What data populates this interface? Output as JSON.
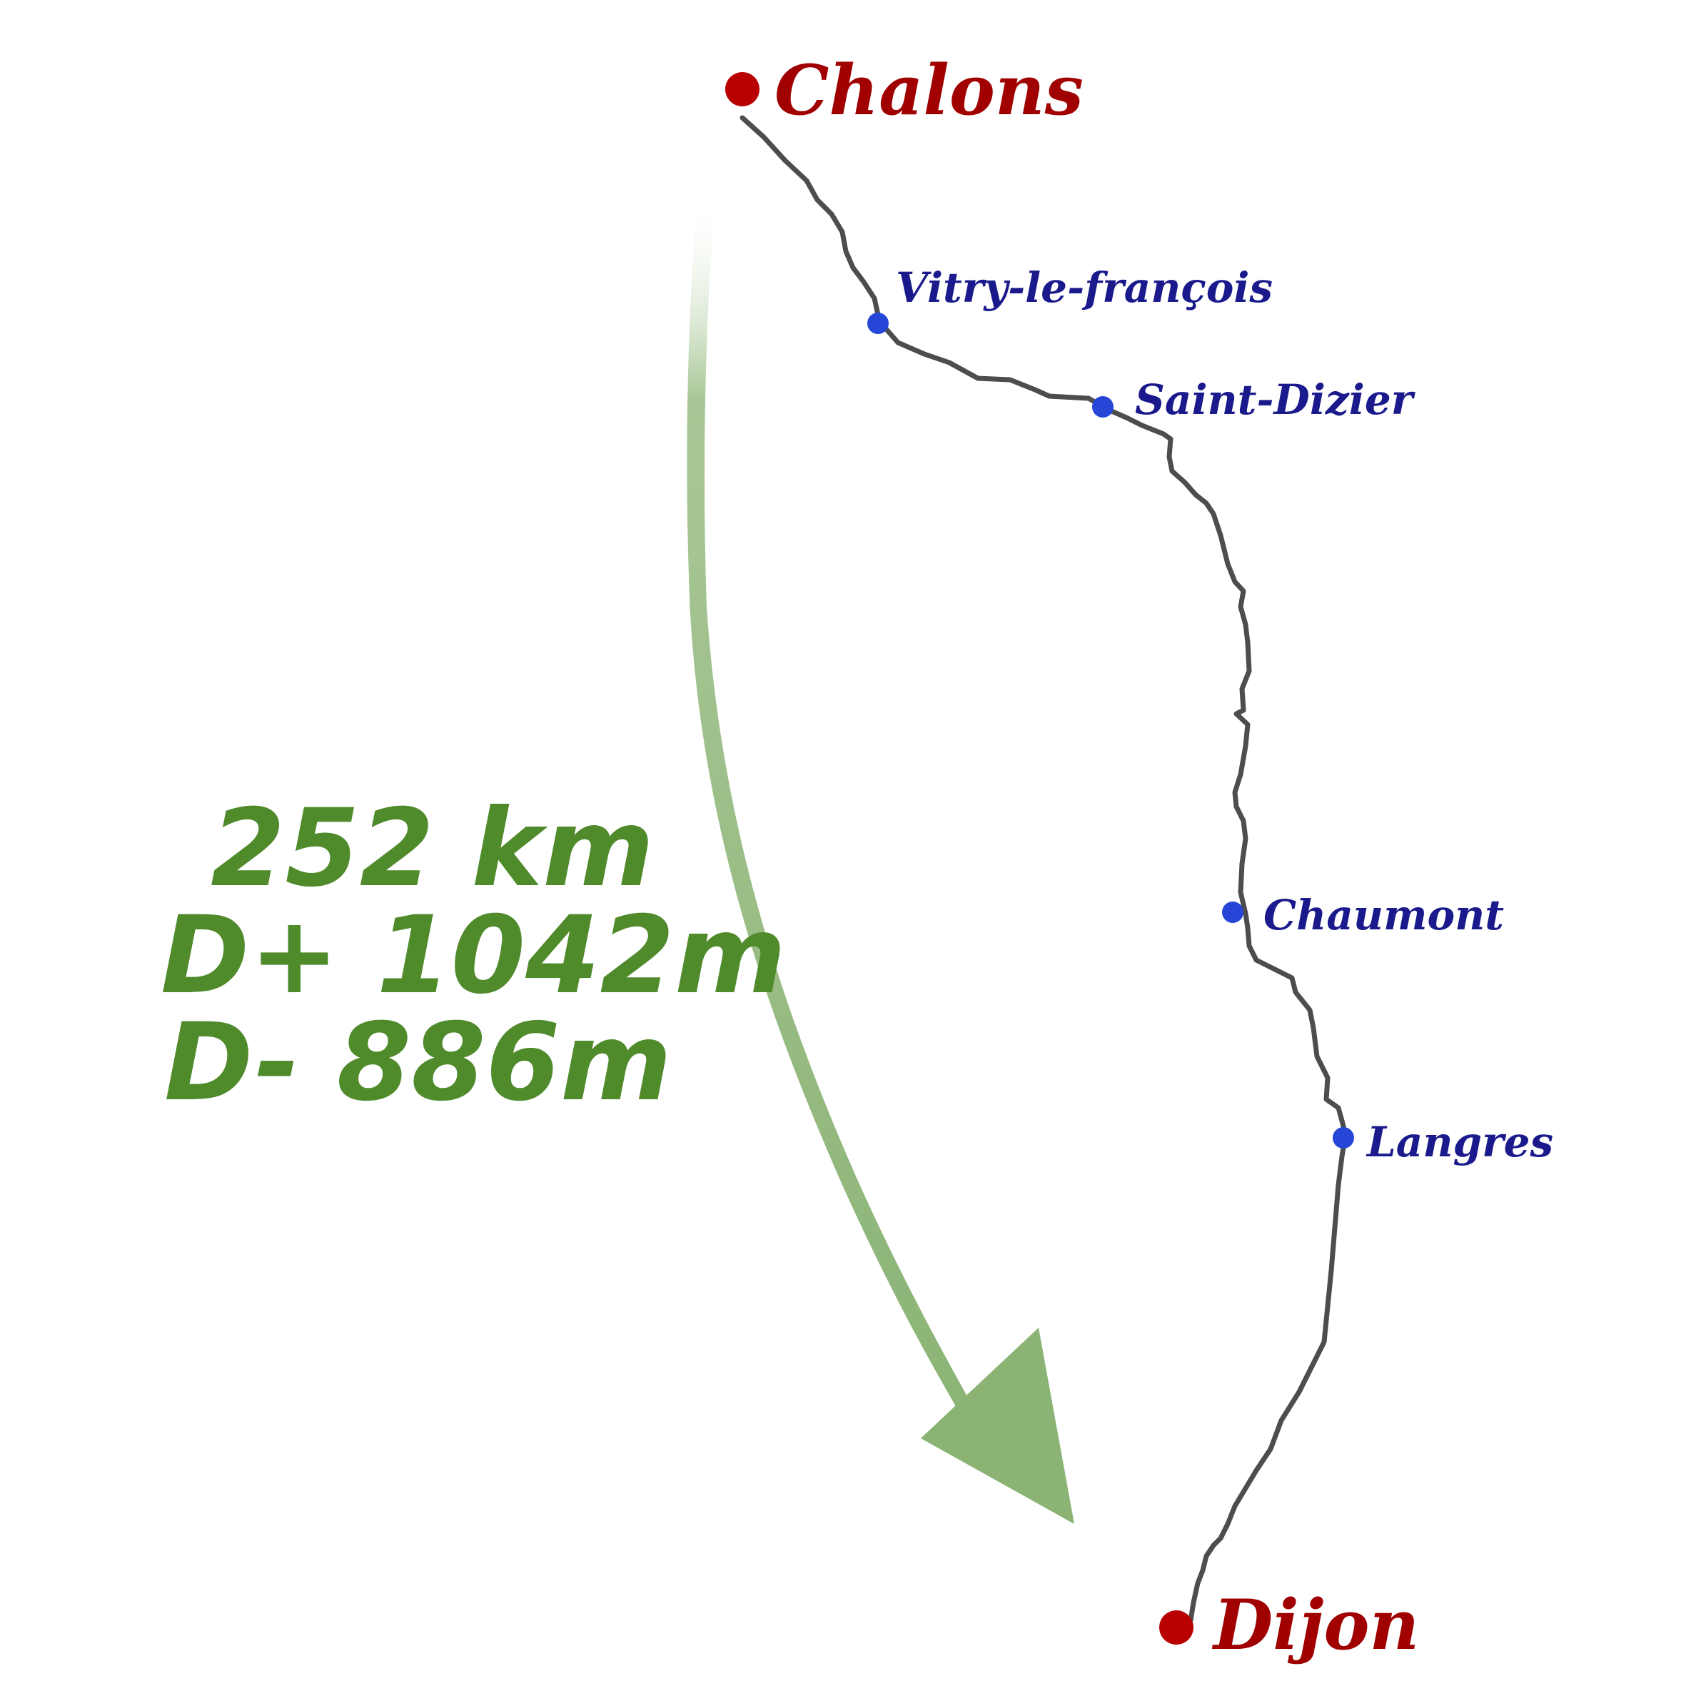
{
  "route": {
    "start": "Chalons",
    "end": "Dijon",
    "waypoints": [
      "Vitry-le-françois",
      "Saint-Dizier",
      "Chaumont",
      "Langres"
    ]
  },
  "stats": {
    "distance": "252 km",
    "elevation_gain": "D+ 1042m",
    "elevation_loss": "D- 886m"
  },
  "colors": {
    "route_line": "#4d4d4d",
    "major_city": "#a00000",
    "major_dot": "#b80000",
    "minor_city": "#1a1a8c",
    "minor_dot": "#2546d6",
    "stats": "#4f8a2b",
    "arrow": "#8fb679"
  }
}
